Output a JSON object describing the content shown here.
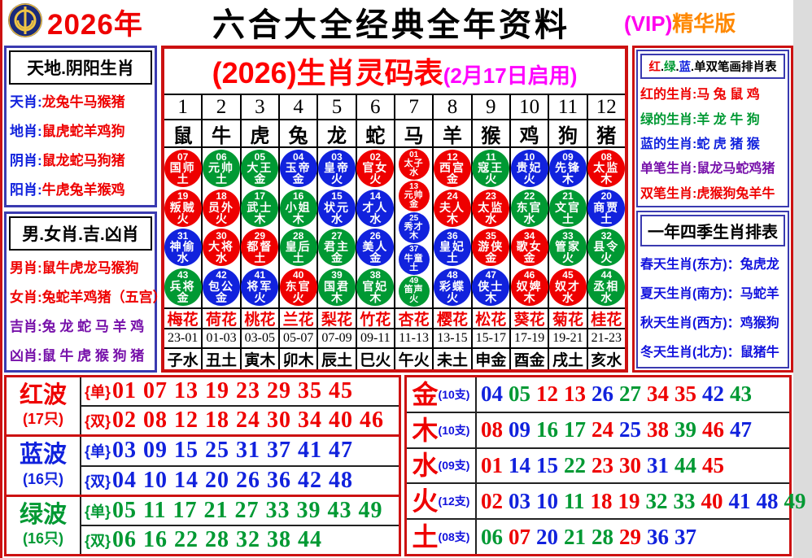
{
  "palette": {
    "red": "#ee0000",
    "green": "#009933",
    "blue": "#1122dd",
    "purple": "#7711aa",
    "black": "#000000",
    "magenta": "#ff00ff",
    "orange": "#ff8800"
  },
  "header": {
    "logo_icon": "liuhe-emblem-icon",
    "year": "2026年",
    "title": "六合大全经典全年资料",
    "vip_prefix": "(VIP)",
    "vip_suffix": "精华版"
  },
  "left_panel": {
    "section1": {
      "title": "天地.阴阳生肖",
      "items": [
        {
          "label": "天肖",
          "value": "龙兔牛马猴猪",
          "lc": "blue",
          "vc": "red"
        },
        {
          "label": "地肖",
          "value": "鼠虎蛇羊鸡狗",
          "lc": "blue",
          "vc": "red"
        },
        {
          "label": "阴肖",
          "value": "鼠龙蛇马狗猪",
          "lc": "blue",
          "vc": "red"
        },
        {
          "label": "阳肖",
          "value": "牛虎兔羊猴鸡",
          "lc": "blue",
          "vc": "red"
        }
      ]
    },
    "section2": {
      "title": "男.女肖.吉.凶肖",
      "items": [
        {
          "label": "男肖",
          "value": "鼠牛虎龙马猴狗",
          "lc": "red",
          "vc": "red"
        },
        {
          "label": "女肖",
          "value": "兔蛇羊鸡猪（五宫）",
          "lc": "red",
          "vc": "red"
        },
        {
          "label": "吉肖",
          "value": "兔 龙 蛇 马 羊 鸡",
          "lc": "purple",
          "vc": "purple"
        },
        {
          "label": "凶肖",
          "value": "鼠 牛 虎 猴 狗 猪",
          "lc": "purple",
          "vc": "purple"
        }
      ]
    }
  },
  "code_table": {
    "title": "(2026)生肖灵码表",
    "subtitle": "(2月17日启用)",
    "columns": [
      {
        "num": "1",
        "zodiac": "鼠",
        "flower": "梅花",
        "time": "23-01",
        "branch": "子水",
        "small": false,
        "balls": [
          {
            "n": "07",
            "role": "国师",
            "elem": "土",
            "c": "red"
          },
          {
            "n": "19",
            "role": "叛贼",
            "elem": "火",
            "c": "red"
          },
          {
            "n": "31",
            "role": "神偷",
            "elem": "水",
            "c": "blue"
          },
          {
            "n": "43",
            "role": "兵将",
            "elem": "金",
            "c": "green"
          }
        ]
      },
      {
        "num": "2",
        "zodiac": "牛",
        "flower": "荷花",
        "time": "01-03",
        "branch": "丑土",
        "small": false,
        "balls": [
          {
            "n": "06",
            "role": "元帅",
            "elem": "土",
            "c": "green"
          },
          {
            "n": "18",
            "role": "员外",
            "elem": "火",
            "c": "red"
          },
          {
            "n": "30",
            "role": "大将",
            "elem": "水",
            "c": "red"
          },
          {
            "n": "42",
            "role": "包公",
            "elem": "金",
            "c": "blue"
          }
        ]
      },
      {
        "num": "3",
        "zodiac": "虎",
        "flower": "桃花",
        "time": "03-05",
        "branch": "寅木",
        "small": false,
        "balls": [
          {
            "n": "05",
            "role": "大王",
            "elem": "金",
            "c": "green"
          },
          {
            "n": "17",
            "role": "武士",
            "elem": "木",
            "c": "green"
          },
          {
            "n": "29",
            "role": "都督",
            "elem": "土",
            "c": "red"
          },
          {
            "n": "41",
            "role": "将军",
            "elem": "火",
            "c": "blue"
          }
        ]
      },
      {
        "num": "4",
        "zodiac": "兔",
        "flower": "兰花",
        "time": "05-07",
        "branch": "卯木",
        "small": false,
        "balls": [
          {
            "n": "04",
            "role": "玉帝",
            "elem": "金",
            "c": "blue"
          },
          {
            "n": "16",
            "role": "小姐",
            "elem": "木",
            "c": "green"
          },
          {
            "n": "28",
            "role": "皇后",
            "elem": "土",
            "c": "green"
          },
          {
            "n": "40",
            "role": "东官",
            "elem": "火",
            "c": "red"
          }
        ]
      },
      {
        "num": "5",
        "zodiac": "龙",
        "flower": "梨花",
        "time": "07-09",
        "branch": "辰土",
        "small": false,
        "balls": [
          {
            "n": "03",
            "role": "皇帝",
            "elem": "火",
            "c": "blue"
          },
          {
            "n": "15",
            "role": "状元",
            "elem": "水",
            "c": "blue"
          },
          {
            "n": "27",
            "role": "君主",
            "elem": "金",
            "c": "green"
          },
          {
            "n": "39",
            "role": "国君",
            "elem": "木",
            "c": "green"
          }
        ]
      },
      {
        "num": "6",
        "zodiac": "蛇",
        "flower": "竹花",
        "time": "09-11",
        "branch": "巳火",
        "small": false,
        "balls": [
          {
            "n": "02",
            "role": "官女",
            "elem": "火",
            "c": "red"
          },
          {
            "n": "14",
            "role": "才人",
            "elem": "水",
            "c": "blue"
          },
          {
            "n": "26",
            "role": "美人",
            "elem": "金",
            "c": "blue"
          },
          {
            "n": "38",
            "role": "官妃",
            "elem": "木",
            "c": "green"
          }
        ]
      },
      {
        "num": "7",
        "zodiac": "马",
        "flower": "杏花",
        "time": "11-13",
        "branch": "午火",
        "small": true,
        "balls": [
          {
            "n": "01",
            "role": "太子",
            "elem": "水",
            "c": "red"
          },
          {
            "n": "13",
            "role": "元帅",
            "elem": "金",
            "c": "red"
          },
          {
            "n": "25",
            "role": "秀才",
            "elem": "木",
            "c": "blue"
          },
          {
            "n": "37",
            "role": "牛童",
            "elem": "土",
            "c": "blue"
          },
          {
            "n": "49",
            "role": "笛声",
            "elem": "火",
            "c": "green"
          }
        ]
      },
      {
        "num": "8",
        "zodiac": "羊",
        "flower": "樱花",
        "time": "13-15",
        "branch": "未土",
        "small": false,
        "balls": [
          {
            "n": "12",
            "role": "西宫",
            "elem": "金",
            "c": "red"
          },
          {
            "n": "24",
            "role": "夫人",
            "elem": "木",
            "c": "red"
          },
          {
            "n": "36",
            "role": "皇妃",
            "elem": "土",
            "c": "blue"
          },
          {
            "n": "48",
            "role": "彩蝶",
            "elem": "火",
            "c": "blue"
          }
        ]
      },
      {
        "num": "9",
        "zodiac": "猴",
        "flower": "松花",
        "time": "15-17",
        "branch": "申金",
        "small": false,
        "balls": [
          {
            "n": "11",
            "role": "寇王",
            "elem": "火",
            "c": "green"
          },
          {
            "n": "23",
            "role": "太监",
            "elem": "水",
            "c": "red"
          },
          {
            "n": "35",
            "role": "游侠",
            "elem": "金",
            "c": "red"
          },
          {
            "n": "47",
            "role": "侠士",
            "elem": "木",
            "c": "blue"
          }
        ]
      },
      {
        "num": "10",
        "zodiac": "鸡",
        "flower": "葵花",
        "time": "17-19",
        "branch": "酉金",
        "small": false,
        "balls": [
          {
            "n": "10",
            "role": "贵妃",
            "elem": "火",
            "c": "blue"
          },
          {
            "n": "22",
            "role": "东官",
            "elem": "水",
            "c": "green"
          },
          {
            "n": "34",
            "role": "歌女",
            "elem": "金",
            "c": "red"
          },
          {
            "n": "46",
            "role": "奴婢",
            "elem": "木",
            "c": "red"
          }
        ]
      },
      {
        "num": "11",
        "zodiac": "狗",
        "flower": "菊花",
        "time": "19-21",
        "branch": "戌土",
        "small": false,
        "balls": [
          {
            "n": "09",
            "role": "先锋",
            "elem": "木",
            "c": "blue"
          },
          {
            "n": "21",
            "role": "文官",
            "elem": "土",
            "c": "green"
          },
          {
            "n": "33",
            "role": "管家",
            "elem": "火",
            "c": "green"
          },
          {
            "n": "45",
            "role": "奴才",
            "elem": "水",
            "c": "red"
          }
        ]
      },
      {
        "num": "12",
        "zodiac": "猪",
        "flower": "桂花",
        "time": "21-23",
        "branch": "亥水",
        "small": false,
        "balls": [
          {
            "n": "08",
            "role": "太监",
            "elem": "木",
            "c": "red"
          },
          {
            "n": "20",
            "role": "商贾",
            "elem": "土",
            "c": "blue"
          },
          {
            "n": "32",
            "role": "县令",
            "elem": "火",
            "c": "green"
          },
          {
            "n": "44",
            "role": "丞相",
            "elem": "水",
            "c": "green"
          }
        ]
      }
    ]
  },
  "right_panel": {
    "section1": {
      "title_segments": [
        {
          "t": "红",
          "c": "red"
        },
        {
          "t": ".",
          "c": "black"
        },
        {
          "t": "绿",
          "c": "green"
        },
        {
          "t": ".",
          "c": "black"
        },
        {
          "t": "蓝",
          "c": "blue"
        },
        {
          "t": ".",
          "c": "black"
        },
        {
          "t": "单双笔画排肖表",
          "c": "black"
        }
      ],
      "items": [
        {
          "label": "红的生肖",
          "value": "马 兔 鼠 鸡",
          "c": "red"
        },
        {
          "label": "绿的生肖",
          "value": "羊 龙 牛 狗",
          "c": "green"
        },
        {
          "label": "蓝的生肖",
          "value": "蛇 虎 猪 猴",
          "c": "blue"
        },
        {
          "label": "单笔生肖",
          "value": "鼠龙马蛇鸡猪",
          "c": "purple"
        },
        {
          "label": "双笔生肖",
          "value": "虎猴狗兔羊牛",
          "c": "red"
        }
      ]
    },
    "section2": {
      "title": "一年四季生肖排表",
      "items": [
        {
          "label": "春天生肖(东方)",
          "value": "兔虎龙"
        },
        {
          "label": "夏天生肖(南方)",
          "value": "马蛇羊"
        },
        {
          "label": "秋天生肖(西方)",
          "value": "鸡猴狗"
        },
        {
          "label": "冬天生肖(北方)",
          "value": "鼠猪牛"
        }
      ]
    }
  },
  "waves": [
    {
      "name": "红波",
      "count": "(17只)",
      "c": "red",
      "odd_label": "{单}",
      "odd": "01 07 13 19 23 29 35 45",
      "even_label": "{双}",
      "even": "02 08 12 18 24 30 34 40 46"
    },
    {
      "name": "蓝波",
      "count": "(16只)",
      "c": "blue",
      "odd_label": "{单}",
      "odd": "03 09 15 25 31 37 41 47",
      "even_label": "{双}",
      "even": "04 10 14 20 26 36 42 48"
    },
    {
      "name": "绿波",
      "count": "(16只)",
      "c": "green",
      "odd_label": "{单}",
      "odd": "05 11 17 21 27 33 39 43 49",
      "even_label": "{双}",
      "even": "06 16 22 28 32 38 44"
    }
  ],
  "elements": [
    {
      "name": "金",
      "count": "(10支)",
      "nums": [
        {
          "n": "04",
          "c": "blue"
        },
        {
          "n": "05",
          "c": "green"
        },
        {
          "n": "12",
          "c": "red"
        },
        {
          "n": "13",
          "c": "red"
        },
        {
          "n": "26",
          "c": "blue"
        },
        {
          "n": "27",
          "c": "green"
        },
        {
          "n": "34",
          "c": "red"
        },
        {
          "n": "35",
          "c": "red"
        },
        {
          "n": "42",
          "c": "blue"
        },
        {
          "n": "43",
          "c": "green"
        }
      ]
    },
    {
      "name": "木",
      "count": "(10支)",
      "nums": [
        {
          "n": "08",
          "c": "red"
        },
        {
          "n": "09",
          "c": "blue"
        },
        {
          "n": "16",
          "c": "green"
        },
        {
          "n": "17",
          "c": "green"
        },
        {
          "n": "24",
          "c": "red"
        },
        {
          "n": "25",
          "c": "blue"
        },
        {
          "n": "38",
          "c": "red"
        },
        {
          "n": "39",
          "c": "green"
        },
        {
          "n": "46",
          "c": "red"
        },
        {
          "n": "47",
          "c": "blue"
        }
      ]
    },
    {
      "name": "水",
      "count": "(09支)",
      "nums": [
        {
          "n": "01",
          "c": "red"
        },
        {
          "n": "14",
          "c": "blue"
        },
        {
          "n": "15",
          "c": "blue"
        },
        {
          "n": "22",
          "c": "green"
        },
        {
          "n": "23",
          "c": "red"
        },
        {
          "n": "30",
          "c": "red"
        },
        {
          "n": "31",
          "c": "blue"
        },
        {
          "n": "44",
          "c": "green"
        },
        {
          "n": "45",
          "c": "red"
        }
      ]
    },
    {
      "name": "火",
      "count": "(12支)",
      "nums": [
        {
          "n": "02",
          "c": "red"
        },
        {
          "n": "03",
          "c": "blue"
        },
        {
          "n": "10",
          "c": "blue"
        },
        {
          "n": "11",
          "c": "green"
        },
        {
          "n": "18",
          "c": "red"
        },
        {
          "n": "19",
          "c": "red"
        },
        {
          "n": "32",
          "c": "green"
        },
        {
          "n": "33",
          "c": "green"
        },
        {
          "n": "40",
          "c": "red"
        },
        {
          "n": "41",
          "c": "blue"
        },
        {
          "n": "48",
          "c": "blue"
        },
        {
          "n": "49",
          "c": "green"
        }
      ]
    },
    {
      "name": "土",
      "count": "(08支)",
      "nums": [
        {
          "n": "06",
          "c": "green"
        },
        {
          "n": "07",
          "c": "red"
        },
        {
          "n": "20",
          "c": "blue"
        },
        {
          "n": "21",
          "c": "green"
        },
        {
          "n": "28",
          "c": "green"
        },
        {
          "n": "29",
          "c": "red"
        },
        {
          "n": "36",
          "c": "blue"
        },
        {
          "n": "37",
          "c": "blue"
        }
      ]
    }
  ]
}
